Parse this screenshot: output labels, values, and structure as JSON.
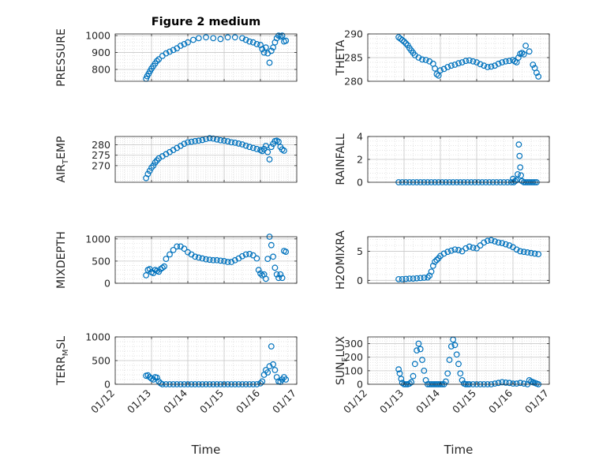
{
  "chart_data": [
    {
      "type": "scatter",
      "title": "Figure 2 medium",
      "ylabel": "PRESSURE",
      "xlabel": "",
      "xlim": [
        12,
        17
      ],
      "ylim": [
        730,
        1010
      ],
      "yticks": [
        800,
        900,
        1000
      ],
      "ytick_labels": [
        "800",
        "900",
        "1000"
      ],
      "xticks": [
        12,
        13,
        14,
        15,
        16,
        17
      ],
      "xtick_labels": [],
      "grid": true,
      "series": [
        {
          "color": "#0072bd",
          "x": [
            12.85,
            12.88,
            12.92,
            12.96,
            13.0,
            13.05,
            13.1,
            13.15,
            13.2,
            13.3,
            13.4,
            13.5,
            13.6,
            13.7,
            13.8,
            13.9,
            14.0,
            14.15,
            14.3,
            14.5,
            14.7,
            14.9,
            15.1,
            15.3,
            15.5,
            15.6,
            15.7,
            15.8,
            15.9,
            16.0,
            16.05,
            16.1,
            16.15,
            16.2,
            16.25,
            16.3,
            16.35,
            16.4,
            16.45,
            16.5,
            16.55,
            16.6,
            16.65,
            16.7
          ],
          "y": [
            745,
            760,
            775,
            790,
            805,
            820,
            835,
            850,
            860,
            880,
            895,
            905,
            915,
            925,
            940,
            950,
            960,
            975,
            985,
            990,
            985,
            980,
            990,
            990,
            985,
            975,
            965,
            960,
            950,
            945,
            920,
            900,
            930,
            895,
            840,
            910,
            930,
            960,
            985,
            1000,
            995,
            1000,
            965,
            970
          ]
        }
      ]
    },
    {
      "type": "scatter",
      "ylabel": "THETA",
      "xlabel": "",
      "xlim": [
        12,
        17
      ],
      "ylim": [
        280,
        290
      ],
      "yticks": [
        280,
        285,
        290
      ],
      "ytick_labels": [
        "280",
        "285",
        "290"
      ],
      "xticks": [
        12,
        13,
        14,
        15,
        16,
        17
      ],
      "xtick_labels": [],
      "grid": true,
      "series": [
        {
          "color": "#0072bd",
          "x": [
            12.85,
            12.9,
            12.95,
            13.0,
            13.05,
            13.1,
            13.15,
            13.2,
            13.25,
            13.3,
            13.4,
            13.5,
            13.6,
            13.7,
            13.8,
            13.85,
            13.9,
            13.95,
            14.0,
            14.1,
            14.2,
            14.3,
            14.4,
            14.5,
            14.6,
            14.7,
            14.8,
            14.9,
            15.0,
            15.1,
            15.2,
            15.3,
            15.4,
            15.5,
            15.6,
            15.7,
            15.8,
            15.9,
            16.0,
            16.05,
            16.1,
            16.15,
            16.2,
            16.25,
            16.3,
            16.35,
            16.45,
            16.55,
            16.6,
            16.65,
            16.7
          ],
          "y": [
            289.3,
            289.0,
            288.7,
            288.4,
            288.0,
            287.6,
            287.0,
            286.5,
            286.0,
            285.5,
            285.0,
            284.6,
            284.5,
            284.2,
            283.7,
            282.7,
            281.5,
            281.2,
            282.3,
            282.6,
            283.0,
            283.3,
            283.5,
            283.8,
            284.0,
            284.3,
            284.4,
            284.2,
            284.0,
            283.6,
            283.3,
            283.0,
            283.1,
            283.3,
            283.7,
            284.0,
            284.2,
            284.3,
            284.5,
            284.2,
            284.0,
            285.0,
            285.8,
            286.0,
            285.7,
            287.5,
            286.3,
            283.5,
            282.8,
            281.8,
            281.0
          ]
        }
      ]
    },
    {
      "type": "scatter",
      "ylabel": "AIR_TEMP",
      "ylabel_main": "AIR",
      "ylabel_sub": "T",
      "ylabel_rest": "EMP",
      "xlabel": "",
      "xlim": [
        12,
        17
      ],
      "ylim": [
        262,
        284
      ],
      "yticks": [
        270,
        275,
        280
      ],
      "ytick_labels": [
        "270",
        "275",
        "280"
      ],
      "xticks": [
        12,
        13,
        14,
        15,
        16,
        17
      ],
      "xtick_labels": [],
      "grid": true,
      "series": [
        {
          "color": "#0072bd",
          "x": [
            12.85,
            12.9,
            12.95,
            13.0,
            13.05,
            13.1,
            13.15,
            13.2,
            13.3,
            13.4,
            13.5,
            13.6,
            13.7,
            13.8,
            13.9,
            14.0,
            14.1,
            14.2,
            14.3,
            14.4,
            14.5,
            14.6,
            14.7,
            14.8,
            14.9,
            15.0,
            15.1,
            15.2,
            15.3,
            15.4,
            15.5,
            15.6,
            15.7,
            15.8,
            15.9,
            16.0,
            16.05,
            16.1,
            16.15,
            16.2,
            16.25,
            16.3,
            16.35,
            16.4,
            16.45,
            16.5,
            16.55,
            16.6,
            16.65
          ],
          "y": [
            264,
            266,
            267.5,
            269,
            270,
            271.5,
            272.5,
            273.5,
            274.5,
            275.5,
            276.5,
            277.5,
            278.5,
            279.5,
            280.5,
            281.2,
            281.5,
            281.8,
            282.0,
            282.3,
            282.8,
            283.2,
            283.0,
            282.6,
            282.2,
            282.0,
            281.7,
            281.2,
            281.0,
            280.6,
            280.2,
            279.6,
            279.0,
            278.5,
            278.0,
            277.5,
            277.0,
            278.0,
            279.5,
            276.5,
            273.0,
            279.0,
            280.5,
            281.8,
            282.0,
            281.5,
            279.0,
            277.8,
            277.2
          ]
        }
      ]
    },
    {
      "type": "scatter",
      "ylabel": "RAINFALL",
      "xlabel": "",
      "xlim": [
        12,
        17
      ],
      "ylim": [
        0,
        4
      ],
      "yticks": [
        0,
        2,
        4
      ],
      "ytick_labels": [
        "0",
        "2",
        "4"
      ],
      "xticks": [
        12,
        13,
        14,
        15,
        16,
        17
      ],
      "xtick_labels": [],
      "grid": true,
      "series": [
        {
          "color": "#0072bd",
          "x": [
            12.85,
            12.95,
            13.05,
            13.15,
            13.25,
            13.35,
            13.45,
            13.55,
            13.65,
            13.75,
            13.85,
            13.95,
            14.05,
            14.15,
            14.25,
            14.35,
            14.45,
            14.55,
            14.65,
            14.75,
            14.85,
            14.95,
            15.05,
            15.15,
            15.25,
            15.35,
            15.45,
            15.55,
            15.65,
            15.75,
            15.85,
            15.95,
            16.0,
            16.02,
            16.06,
            16.1,
            16.13,
            16.16,
            16.18,
            16.2,
            16.22,
            16.25,
            16.3,
            16.35,
            16.4,
            16.45,
            16.5,
            16.55,
            16.6,
            16.65
          ],
          "y": [
            0,
            0,
            0,
            0,
            0,
            0,
            0,
            0,
            0,
            0,
            0,
            0,
            0,
            0,
            0,
            0,
            0,
            0,
            0,
            0,
            0,
            0,
            0,
            0,
            0,
            0,
            0,
            0,
            0,
            0,
            0,
            0,
            0.3,
            0,
            0.1,
            0.2,
            0.7,
            3.3,
            2.3,
            1.3,
            0.6,
            0.1,
            0,
            0,
            0,
            0,
            0,
            0,
            0,
            0
          ]
        }
      ]
    },
    {
      "type": "scatter",
      "ylabel": "MIXDEPTH",
      "xlabel": "",
      "xlim": [
        12,
        17
      ],
      "ylim": [
        0,
        1050
      ],
      "yticks": [
        0,
        500,
        1000
      ],
      "ytick_labels": [
        "0",
        "500",
        "1000"
      ],
      "xticks": [
        12,
        13,
        14,
        15,
        16,
        17
      ],
      "xtick_labels": [],
      "grid": true,
      "series": [
        {
          "color": "#0072bd",
          "x": [
            12.85,
            12.9,
            12.95,
            13.0,
            13.05,
            13.1,
            13.15,
            13.2,
            13.25,
            13.3,
            13.35,
            13.4,
            13.5,
            13.6,
            13.7,
            13.8,
            13.9,
            14.0,
            14.1,
            14.2,
            14.3,
            14.4,
            14.5,
            14.6,
            14.7,
            14.8,
            14.9,
            15.0,
            15.1,
            15.2,
            15.3,
            15.4,
            15.5,
            15.6,
            15.7,
            15.8,
            15.9,
            15.95,
            16.0,
            16.05,
            16.1,
            16.15,
            16.2,
            16.25,
            16.3,
            16.35,
            16.4,
            16.45,
            16.5,
            16.55,
            16.6,
            16.65,
            16.7
          ],
          "y": [
            180,
            300,
            320,
            250,
            230,
            300,
            280,
            260,
            320,
            350,
            380,
            550,
            650,
            750,
            830,
            830,
            780,
            700,
            650,
            600,
            580,
            560,
            540,
            530,
            520,
            520,
            510,
            500,
            480,
            480,
            520,
            560,
            610,
            650,
            660,
            630,
            560,
            300,
            220,
            180,
            200,
            100,
            550,
            1050,
            860,
            600,
            350,
            200,
            120,
            200,
            120,
            730,
            710
          ]
        }
      ]
    },
    {
      "type": "scatter",
      "ylabel": "H2OMIXRA",
      "xlabel": "",
      "xlim": [
        12,
        17
      ],
      "ylim": [
        -0.5,
        7.5
      ],
      "yticks": [
        0,
        5
      ],
      "ytick_labels": [
        "0",
        "5"
      ],
      "xticks": [
        12,
        13,
        14,
        15,
        16,
        17
      ],
      "xtick_labels": [],
      "grid": true,
      "series": [
        {
          "color": "#0072bd",
          "x": [
            12.85,
            12.95,
            13.05,
            13.15,
            13.25,
            13.35,
            13.45,
            13.55,
            13.65,
            13.7,
            13.75,
            13.8,
            13.85,
            13.9,
            13.95,
            14.0,
            14.1,
            14.2,
            14.3,
            14.4,
            14.5,
            14.6,
            14.7,
            14.8,
            14.9,
            15.0,
            15.1,
            15.2,
            15.3,
            15.4,
            15.5,
            15.6,
            15.7,
            15.8,
            15.9,
            16.0,
            16.1,
            16.2,
            16.3,
            16.4,
            16.5,
            16.6,
            16.7
          ],
          "y": [
            0.2,
            0.2,
            0.25,
            0.3,
            0.3,
            0.35,
            0.4,
            0.45,
            0.5,
            0.8,
            1.5,
            2.5,
            3.2,
            3.5,
            3.8,
            4.2,
            4.6,
            4.9,
            5.1,
            5.3,
            5.2,
            5.0,
            5.5,
            5.8,
            5.6,
            5.5,
            6.0,
            6.5,
            6.8,
            6.9,
            6.7,
            6.5,
            6.4,
            6.2,
            6.0,
            5.7,
            5.3,
            5.0,
            4.9,
            4.8,
            4.7,
            4.6,
            4.5
          ]
        }
      ]
    },
    {
      "type": "scatter",
      "ylabel": "TERR_MSL",
      "ylabel_main": "TERR",
      "ylabel_sub": "M",
      "ylabel_rest": "SL",
      "xlabel": "Time",
      "xlim": [
        12,
        17
      ],
      "ylim": [
        0,
        1000
      ],
      "yticks": [
        0,
        500,
        1000
      ],
      "ytick_labels": [
        "0",
        "500",
        "1000"
      ],
      "xticks": [
        12,
        13,
        14,
        15,
        16,
        17
      ],
      "xtick_labels": [
        "01/12",
        "01/13",
        "01/14",
        "01/15",
        "01/16",
        "01/17"
      ],
      "grid": true,
      "series": [
        {
          "color": "#0072bd",
          "x": [
            12.85,
            12.9,
            12.95,
            13.0,
            13.05,
            13.1,
            13.15,
            13.2,
            13.25,
            13.3,
            13.4,
            13.5,
            13.6,
            13.7,
            13.8,
            13.9,
            14.0,
            14.1,
            14.2,
            14.3,
            14.4,
            14.5,
            14.6,
            14.7,
            14.8,
            14.9,
            15.0,
            15.1,
            15.2,
            15.3,
            15.4,
            15.5,
            15.6,
            15.7,
            15.8,
            15.9,
            16.0,
            16.05,
            16.1,
            16.15,
            16.2,
            16.25,
            16.3,
            16.35,
            16.4,
            16.45,
            16.5,
            16.55,
            16.6,
            16.65,
            16.7
          ],
          "y": [
            180,
            190,
            150,
            120,
            100,
            150,
            140,
            60,
            20,
            0,
            0,
            0,
            0,
            0,
            0,
            0,
            0,
            0,
            0,
            0,
            0,
            0,
            0,
            0,
            0,
            0,
            0,
            0,
            0,
            0,
            0,
            0,
            0,
            0,
            0,
            0,
            20,
            60,
            200,
            300,
            250,
            380,
            800,
            420,
            300,
            150,
            60,
            50,
            100,
            150,
            100
          ]
        }
      ]
    },
    {
      "type": "scatter",
      "ylabel": "SUN_FLUX",
      "ylabel_main": "SUN",
      "ylabel_sub": "F",
      "ylabel_rest": "LUX",
      "xlabel": "Time",
      "xlim": [
        12,
        17
      ],
      "ylim": [
        0,
        350
      ],
      "yticks": [
        0,
        100,
        200,
        300
      ],
      "ytick_labels": [
        "0",
        "100",
        "200",
        "300"
      ],
      "xticks": [
        12,
        13,
        14,
        15,
        16,
        17
      ],
      "xtick_labels": [
        "01/12",
        "01/13",
        "01/14",
        "01/15",
        "01/16",
        "01/17"
      ],
      "grid": true,
      "series": [
        {
          "color": "#0072bd",
          "x": [
            12.85,
            12.88,
            12.92,
            12.95,
            13.0,
            13.05,
            13.1,
            13.15,
            13.2,
            13.25,
            13.3,
            13.35,
            13.4,
            13.45,
            13.5,
            13.55,
            13.6,
            13.65,
            13.7,
            13.75,
            13.8,
            13.85,
            13.9,
            13.95,
            14.0,
            14.05,
            14.1,
            14.15,
            14.2,
            14.25,
            14.3,
            14.35,
            14.4,
            14.45,
            14.5,
            14.55,
            14.6,
            14.65,
            14.7,
            14.75,
            14.8,
            14.9,
            15.0,
            15.1,
            15.2,
            15.3,
            15.4,
            15.5,
            15.6,
            15.7,
            15.8,
            15.9,
            16.0,
            16.1,
            16.2,
            16.3,
            16.4,
            16.45,
            16.5,
            16.55,
            16.6,
            16.65,
            16.7
          ],
          "y": [
            110,
            80,
            40,
            10,
            0,
            0,
            0,
            5,
            15,
            60,
            150,
            250,
            300,
            260,
            180,
            100,
            30,
            0,
            0,
            0,
            0,
            0,
            0,
            0,
            0,
            0,
            0,
            20,
            80,
            180,
            280,
            330,
            290,
            220,
            150,
            80,
            30,
            5,
            0,
            0,
            0,
            0,
            0,
            0,
            0,
            0,
            0,
            5,
            10,
            15,
            12,
            10,
            5,
            5,
            10,
            5,
            0,
            30,
            20,
            15,
            10,
            5,
            0
          ]
        }
      ]
    }
  ]
}
